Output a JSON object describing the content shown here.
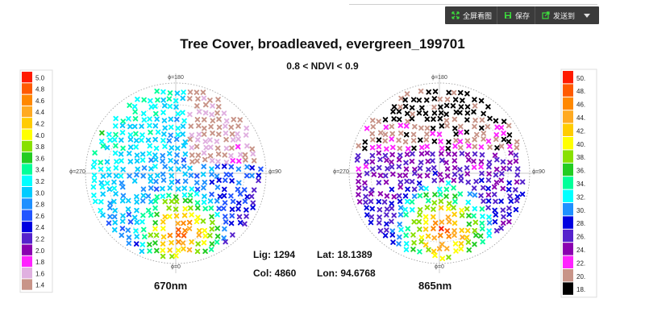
{
  "toolbar": {
    "fullscreen_label": "全屏看图",
    "save_label": "保存",
    "send_label": "发送到"
  },
  "title": "Tree Cover, broadleaved, evergreen_199701",
  "subtitle": "0.8 < NDVI < 0.9",
  "info": {
    "lig": "Lig: 1294",
    "col": "Col: 4860",
    "lat": "Lat: 18.1389",
    "lon": "Lon: 94.6768"
  },
  "plots": {
    "left": {
      "band_label": "670nm",
      "phi_top": "ϕ=180",
      "phi_bottom": "ϕ=0",
      "phi_left": "ϕ=270",
      "phi_right": "ϕ=90"
    },
    "right": {
      "band_label": "865nm",
      "phi_top": "ϕ=180",
      "phi_bottom": "ϕ=0",
      "phi_left": "ϕ=270",
      "phi_right": "ϕ=90"
    }
  },
  "legend_left": {
    "values": [
      "5.0",
      "4.8",
      "4.6",
      "4.4",
      "4.2",
      "4.0",
      "3.8",
      "3.6",
      "3.4",
      "3.2",
      "3.0",
      "2.8",
      "2.6",
      "2.4",
      "2.2",
      "2.0",
      "1.8",
      "1.6",
      "1.4"
    ],
    "colors": [
      "#ff1a00",
      "#ff5a00",
      "#ff8800",
      "#ffaa22",
      "#ffcc00",
      "#ffff00",
      "#88e000",
      "#22cc22",
      "#00ff99",
      "#00ffff",
      "#00ccff",
      "#1e90ff",
      "#2255ff",
      "#0000e0",
      "#5522cc",
      "#8a00b0",
      "#ff22ff",
      "#e0b0e0",
      "#c89488"
    ]
  },
  "legend_right": {
    "values": [
      "50.",
      "48.",
      "46.",
      "44.",
      "42.",
      "40.",
      "38.",
      "36.",
      "34.",
      "32.",
      "30.",
      "28.",
      "26.",
      "24.",
      "22.",
      "20.",
      "18."
    ],
    "colors": [
      "#ff1a00",
      "#ff5a00",
      "#ff8800",
      "#ffaa22",
      "#ffcc00",
      "#ffff00",
      "#88e000",
      "#22cc22",
      "#00ff99",
      "#00ffff",
      "#1e90ff",
      "#0000e0",
      "#5522cc",
      "#8a00b0",
      "#ff22ff",
      "#c89488",
      "#000000"
    ]
  }
}
